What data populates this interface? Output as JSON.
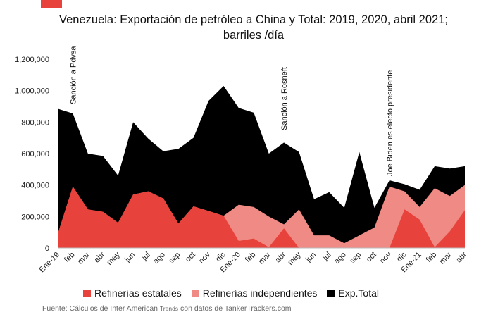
{
  "title": "Venezuela: Exportación de petróleo a China y Total: 2019, 2020, abril 2021; barriles /día",
  "title_line1": "Venezuela: Exportación de petróleo a China y Total: 2019, 2020, abril 2021;",
  "title_line2": "barriles /día",
  "source": {
    "prefix": "Fuente: Cálculos de Inter American ",
    "trends": "Trends",
    "suffix": " con datos de TankerTrackers.com"
  },
  "colors": {
    "accent": "#e8423c",
    "estatales": "#e8423c",
    "independientes": "#f08a84",
    "total": "#000000"
  },
  "chart_data": {
    "type": "area",
    "categories": [
      "Ene-19",
      "feb",
      "mar",
      "abr",
      "may",
      "jun",
      "jul",
      "ago",
      "sep",
      "oct",
      "nov",
      "dic",
      "Ene-20",
      "feb",
      "mar",
      "abr",
      "may",
      "jun",
      "jul",
      "ago",
      "sep",
      "oct",
      "nov",
      "dic",
      "Ene-21",
      "feb",
      "mar",
      "abr"
    ],
    "ylim": [
      0,
      1200000
    ],
    "yticks": [
      0,
      200000,
      400000,
      600000,
      800000,
      1000000,
      1200000
    ],
    "ytick_labels": [
      "0",
      "200,000",
      "400,000",
      "600,000",
      "800,000",
      "1,000,000",
      "1,200,000"
    ],
    "series": [
      {
        "name": "Refinerías estatales",
        "color": "#e8423c",
        "values": [
          90000,
          390000,
          245000,
          230000,
          160000,
          340000,
          360000,
          315000,
          155000,
          265000,
          235000,
          205000,
          45000,
          60000,
          5000,
          125000,
          0,
          0,
          0,
          0,
          0,
          0,
          0,
          245000,
          180000,
          5000,
          105000,
          240000
        ]
      },
      {
        "name": "Refinerías independientes",
        "color": "#f08a84",
        "values": [
          0,
          0,
          0,
          0,
          0,
          0,
          0,
          0,
          0,
          0,
          0,
          0,
          230000,
          200000,
          195000,
          25000,
          245000,
          80000,
          80000,
          30000,
          80000,
          130000,
          390000,
          115000,
          80000,
          375000,
          225000,
          160000
        ]
      },
      {
        "name": "Exp.Total",
        "color": "#000000",
        "values": [
          885000,
          855000,
          600000,
          585000,
          460000,
          800000,
          695000,
          615000,
          630000,
          700000,
          935000,
          1030000,
          890000,
          860000,
          600000,
          670000,
          610000,
          310000,
          355000,
          255000,
          610000,
          255000,
          430000,
          405000,
          370000,
          520000,
          505000,
          520000
        ]
      }
    ],
    "annotations": [
      {
        "text": "Sanción a Pdvsa",
        "category": "feb"
      },
      {
        "text": "Sanción a Rosneft",
        "category": "abr"
      },
      {
        "text": "Joe Biden es electo presidente",
        "category": "nov"
      }
    ],
    "legend_position": "bottom"
  }
}
